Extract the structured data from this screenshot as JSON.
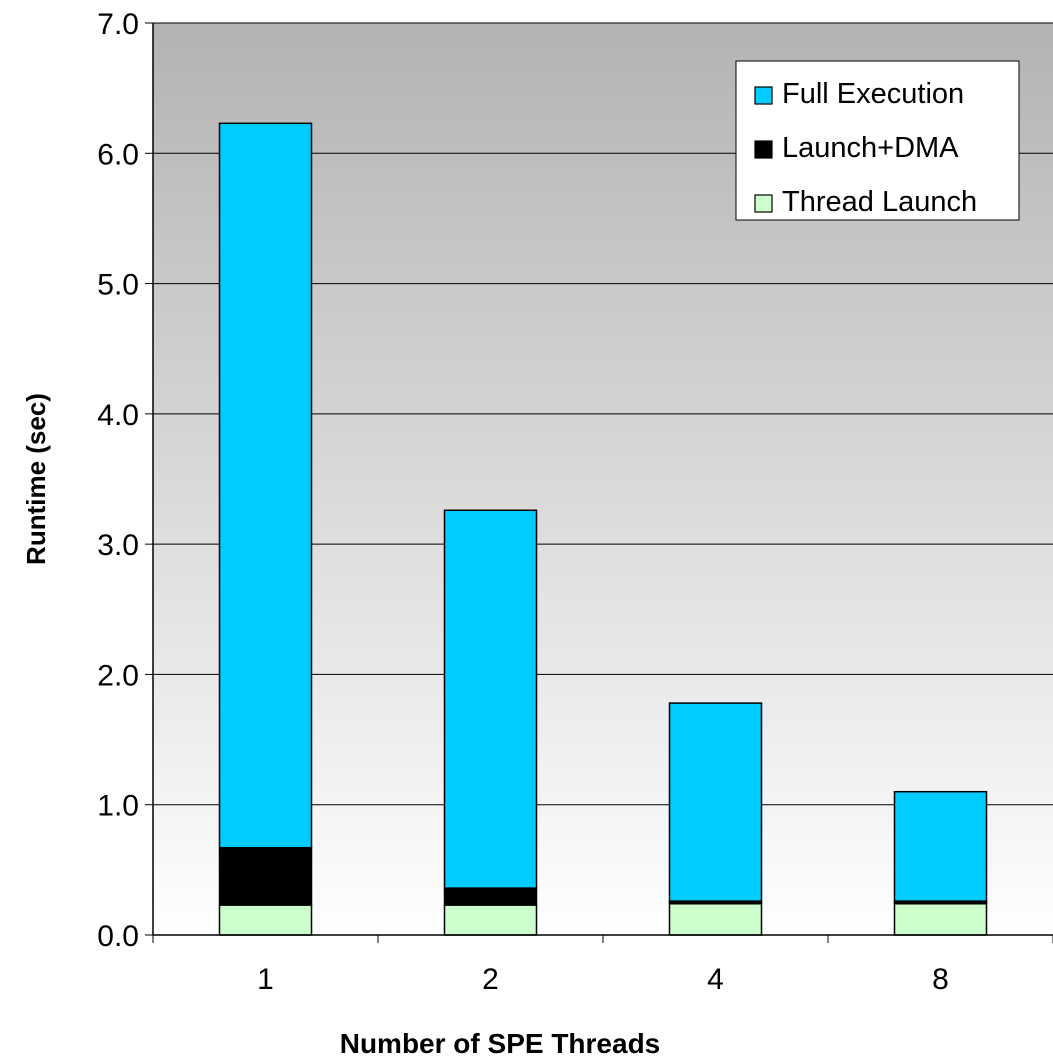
{
  "chart_data": {
    "type": "bar",
    "stacked": true,
    "title": "",
    "xlabel": "Number of SPE Threads",
    "ylabel": "Runtime (sec)",
    "categories": [
      "1",
      "2",
      "4",
      "8"
    ],
    "ylim": [
      0,
      7
    ],
    "yticks": [
      "0.0",
      "1.0",
      "2.0",
      "3.0",
      "4.0",
      "5.0",
      "6.0",
      "7.0"
    ],
    "grid": true,
    "legend_position": "top-right",
    "series": [
      {
        "name": "Thread Launch",
        "color": "#ccffcc",
        "values": [
          0.23,
          0.23,
          0.24,
          0.24
        ]
      },
      {
        "name": "Launch+DMA",
        "color": "#000000",
        "values": [
          0.44,
          0.13,
          0.02,
          0.02
        ]
      },
      {
        "name": "Full Execution",
        "color": "#00ccff",
        "values": [
          5.56,
          2.9,
          1.52,
          0.84
        ]
      }
    ],
    "legend_order": [
      "Full Execution",
      "Launch+DMA",
      "Thread Launch"
    ]
  }
}
